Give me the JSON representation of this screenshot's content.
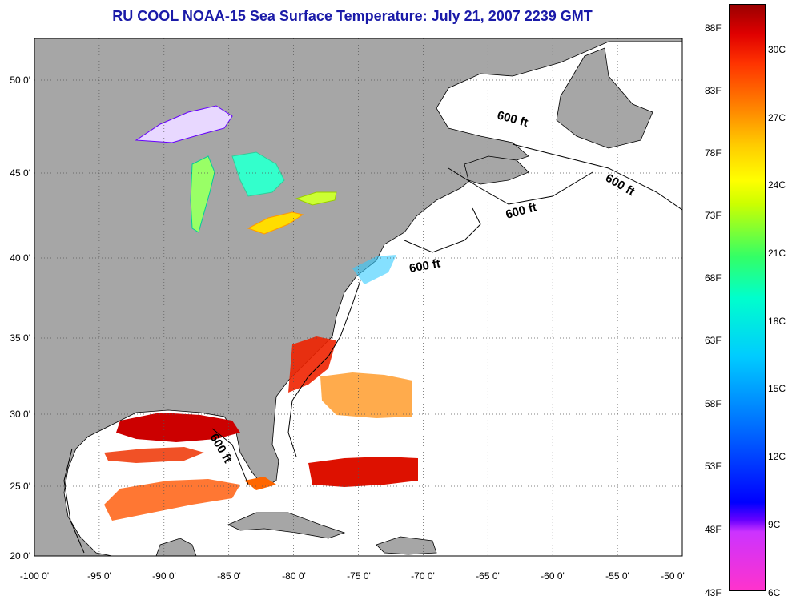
{
  "title": "RU COOL  NOAA-15  Sea Surface Temperature:  July 21, 2007 2239 GMT",
  "map": {
    "lon_range": [
      -100,
      -50
    ],
    "lat_range": [
      20,
      52.5
    ],
    "lon_ticks": [
      "-100 0'",
      "-95 0'",
      "-90 0'",
      "-85 0'",
      "-80 0'",
      "-75 0'",
      "-70 0'",
      "-65 0'",
      "-60 0'",
      "-55 0'",
      "-50 0'"
    ],
    "lat_ticks": [
      "20 0'",
      "25 0'",
      "30 0'",
      "35 0'",
      "40 0'",
      "45 0'",
      "50 0'"
    ],
    "isobath_labels": [
      "600 ft",
      "600 ft",
      "600 ft",
      "600 ft",
      "600 ft"
    ],
    "land_color": "#a6a6a6",
    "water_color": "#ffffff"
  },
  "colorbar": {
    "fahrenheit_labels": [
      "88F",
      "83F",
      "78F",
      "73F",
      "68F",
      "63F",
      "58F",
      "53F",
      "48F",
      "43F"
    ],
    "celsius_labels": [
      "30C",
      "27C",
      "24C",
      "21C",
      "18C",
      "15C",
      "12C",
      "9C",
      "6C"
    ]
  }
}
